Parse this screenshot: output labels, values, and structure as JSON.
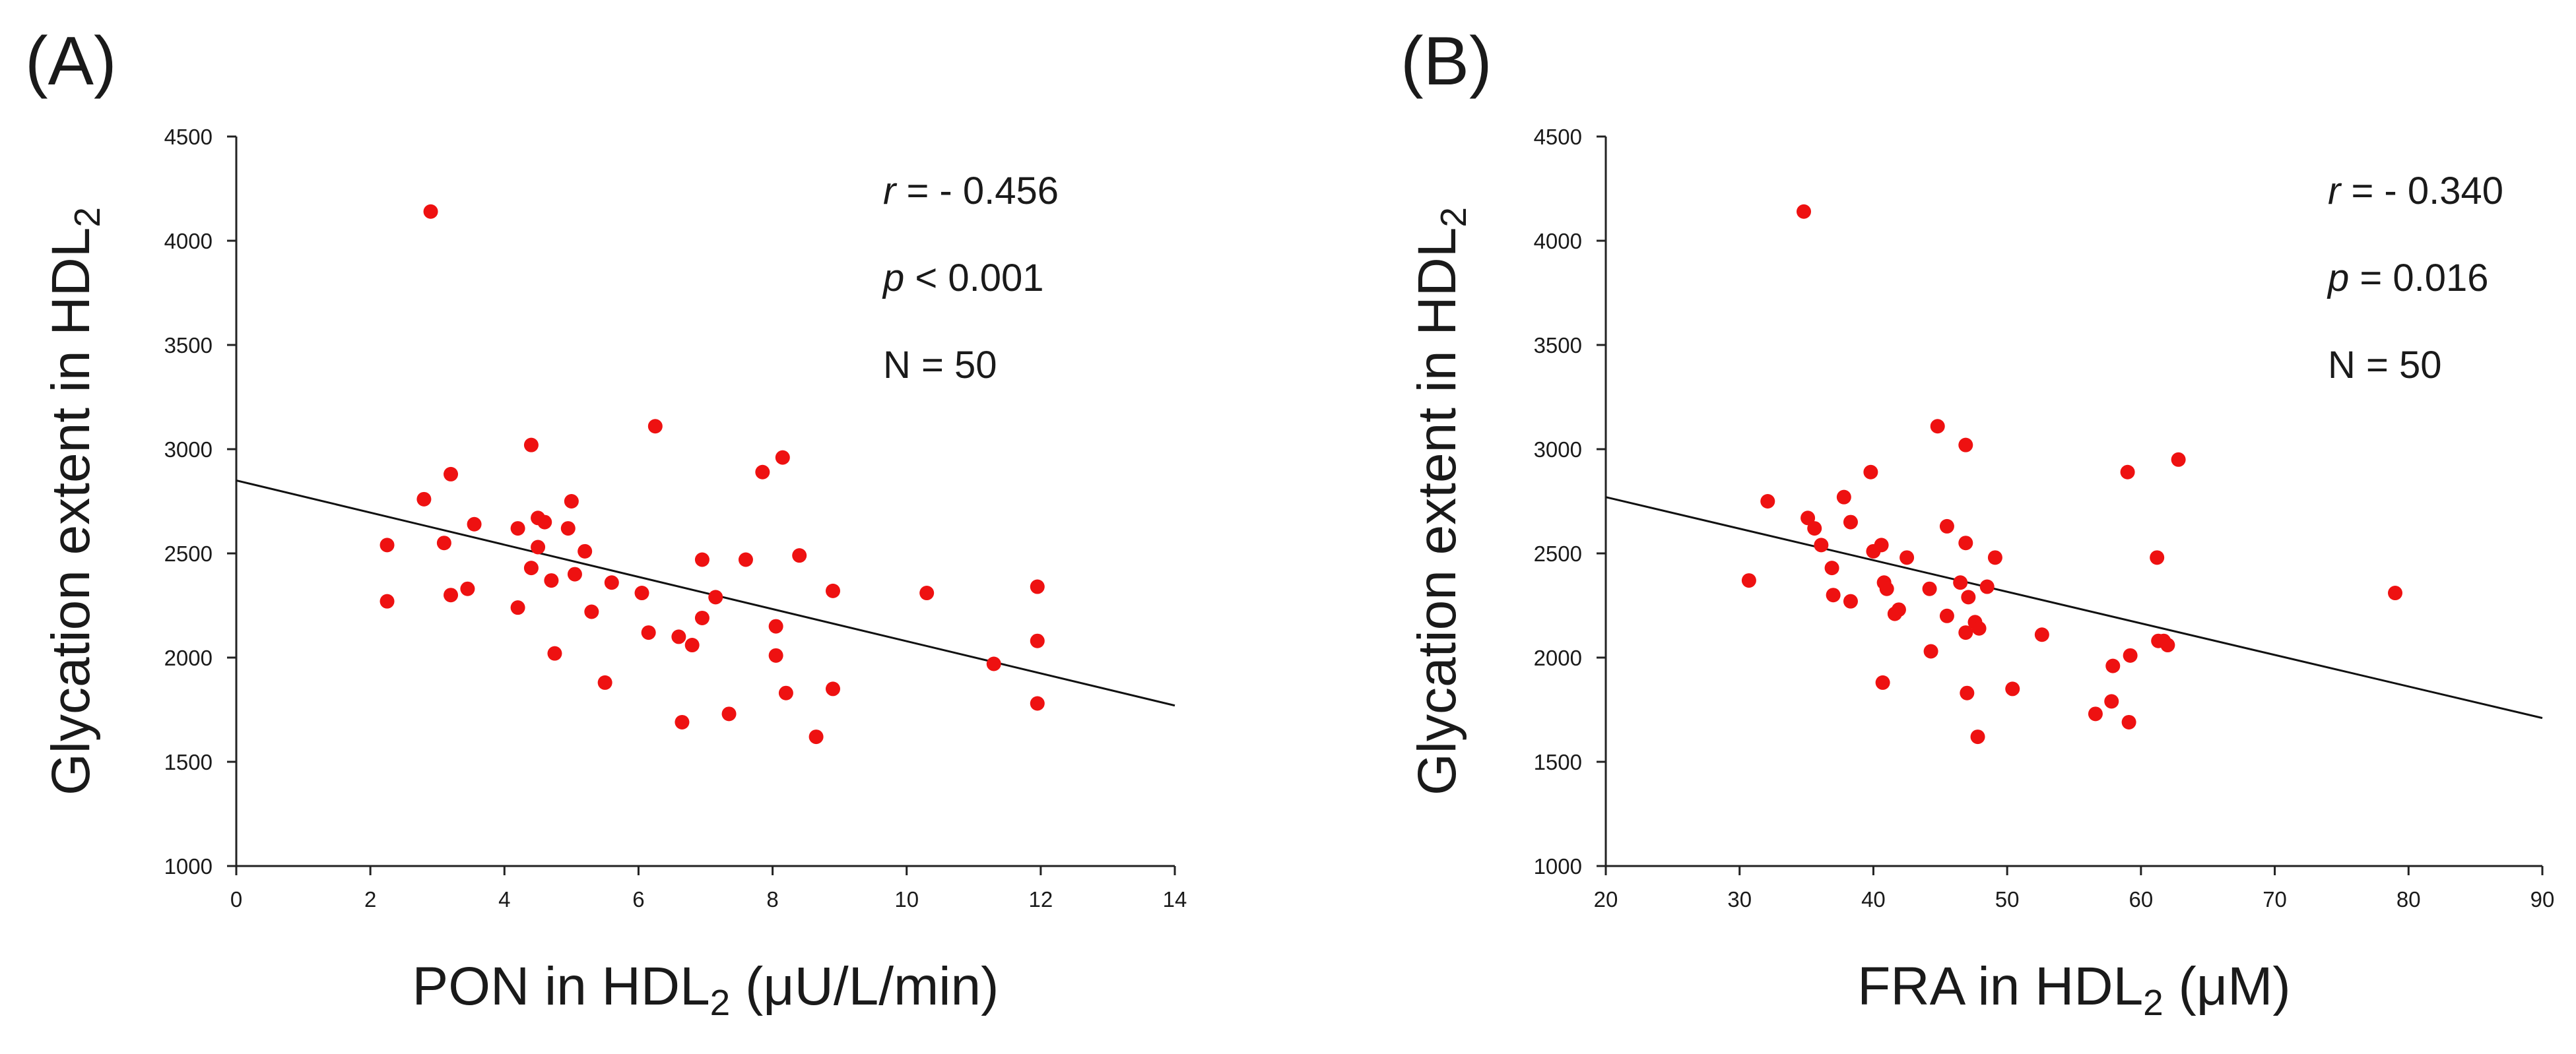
{
  "chart_data": [
    {
      "type": "scatter",
      "panel_label": "(A)",
      "xlabel": "PON in HDL",
      "xlabel_sub": "2",
      "xlabel_tail": " (μU/L/min)",
      "ylabel": "Glycation extent in HDL",
      "ylabel_sub": "2",
      "xlim": [
        0,
        14
      ],
      "ylim": [
        1000,
        4500
      ],
      "xticks": [
        0,
        2,
        4,
        6,
        8,
        10,
        12,
        14
      ],
      "yticks": [
        1000,
        1500,
        2000,
        2500,
        3000,
        3500,
        4000,
        4500
      ],
      "marker_color": "#ee1111",
      "stats": [
        {
          "italic": "r",
          "rest": " = - 0.456"
        },
        {
          "italic": "p",
          "rest": " < 0.001"
        },
        {
          "italic": "",
          "rest": "N = 50"
        }
      ],
      "trendline": {
        "x": [
          0,
          14
        ],
        "y": [
          2850,
          1770
        ]
      },
      "points": [
        [
          2.25,
          2540
        ],
        [
          2.25,
          2270
        ],
        [
          2.8,
          2760
        ],
        [
          2.9,
          4140
        ],
        [
          3.1,
          2550
        ],
        [
          3.2,
          2880
        ],
        [
          3.2,
          2300
        ],
        [
          3.45,
          2330
        ],
        [
          3.55,
          2640
        ],
        [
          4.2,
          2620
        ],
        [
          4.2,
          2240
        ],
        [
          4.4,
          3020
        ],
        [
          4.4,
          2430
        ],
        [
          4.5,
          2670
        ],
        [
          4.5,
          2530
        ],
        [
          4.6,
          2650
        ],
        [
          4.7,
          2370
        ],
        [
          4.75,
          2020
        ],
        [
          4.95,
          2620
        ],
        [
          5.0,
          2750
        ],
        [
          5.05,
          2400
        ],
        [
          5.2,
          2510
        ],
        [
          5.3,
          2220
        ],
        [
          5.5,
          1880
        ],
        [
          5.6,
          2360
        ],
        [
          6.05,
          2310
        ],
        [
          6.15,
          2120
        ],
        [
          6.25,
          3110
        ],
        [
          6.6,
          2100
        ],
        [
          6.65,
          1690
        ],
        [
          6.8,
          2060
        ],
        [
          6.95,
          2470
        ],
        [
          6.95,
          2190
        ],
        [
          7.15,
          2290
        ],
        [
          7.35,
          1730
        ],
        [
          7.6,
          2470
        ],
        [
          7.85,
          2890
        ],
        [
          8.05,
          2150
        ],
        [
          8.05,
          2010
        ],
        [
          8.15,
          2960
        ],
        [
          8.2,
          1830
        ],
        [
          8.4,
          2490
        ],
        [
          8.65,
          1620
        ],
        [
          8.9,
          2320
        ],
        [
          8.9,
          1850
        ],
        [
          10.3,
          2310
        ],
        [
          11.3,
          1970
        ],
        [
          11.95,
          2340
        ],
        [
          11.95,
          2080
        ],
        [
          11.95,
          1780
        ]
      ]
    },
    {
      "type": "scatter",
      "panel_label": "(B)",
      "xlabel": "FRA in HDL",
      "xlabel_sub": "2",
      "xlabel_tail": " (μM)",
      "ylabel": "Glycation extent in HDL",
      "ylabel_sub": "2",
      "xlim": [
        20,
        90
      ],
      "ylim": [
        1000,
        4500
      ],
      "xticks": [
        20,
        30,
        40,
        50,
        60,
        70,
        80,
        90
      ],
      "yticks": [
        1000,
        1500,
        2000,
        2500,
        3000,
        3500,
        4000,
        4500
      ],
      "marker_color": "#ee1111",
      "stats": [
        {
          "italic": "r",
          "rest": " = - 0.340"
        },
        {
          "italic": "p",
          "rest": " = 0.016"
        },
        {
          "italic": "",
          "rest": "N = 50"
        }
      ],
      "trendline": {
        "x": [
          20,
          90
        ],
        "y": [
          2770,
          1710
        ]
      },
      "points": [
        [
          30.7,
          2370
        ],
        [
          32.1,
          2750
        ],
        [
          34.8,
          4140
        ],
        [
          35.1,
          2670
        ],
        [
          35.6,
          2620
        ],
        [
          36.1,
          2540
        ],
        [
          36.9,
          2430
        ],
        [
          37.0,
          2300
        ],
        [
          37.8,
          2770
        ],
        [
          38.3,
          2650
        ],
        [
          38.3,
          2270
        ],
        [
          39.8,
          2890
        ],
        [
          40.0,
          2510
        ],
        [
          40.6,
          2540
        ],
        [
          40.8,
          2360
        ],
        [
          40.7,
          1880
        ],
        [
          41.0,
          2330
        ],
        [
          41.6,
          2210
        ],
        [
          41.9,
          2230
        ],
        [
          42.5,
          2480
        ],
        [
          44.2,
          2330
        ],
        [
          44.3,
          2030
        ],
        [
          44.8,
          3110
        ],
        [
          45.5,
          2630
        ],
        [
          45.5,
          2200
        ],
        [
          46.5,
          2360
        ],
        [
          46.9,
          3020
        ],
        [
          46.9,
          2550
        ],
        [
          47.1,
          2290
        ],
        [
          46.9,
          2120
        ],
        [
          47.0,
          1830
        ],
        [
          47.6,
          2170
        ],
        [
          47.9,
          2140
        ],
        [
          47.8,
          1620
        ],
        [
          48.5,
          2340
        ],
        [
          49.1,
          2480
        ],
        [
          50.4,
          1850
        ],
        [
          52.6,
          2110
        ],
        [
          56.6,
          1730
        ],
        [
          57.9,
          1960
        ],
        [
          57.8,
          1790
        ],
        [
          59.0,
          2890
        ],
        [
          59.2,
          2010
        ],
        [
          59.1,
          1690
        ],
        [
          61.2,
          2480
        ],
        [
          61.3,
          2080
        ],
        [
          61.7,
          2080
        ],
        [
          62.0,
          2060
        ],
        [
          62.8,
          2950
        ],
        [
          79.0,
          2310
        ]
      ]
    }
  ]
}
